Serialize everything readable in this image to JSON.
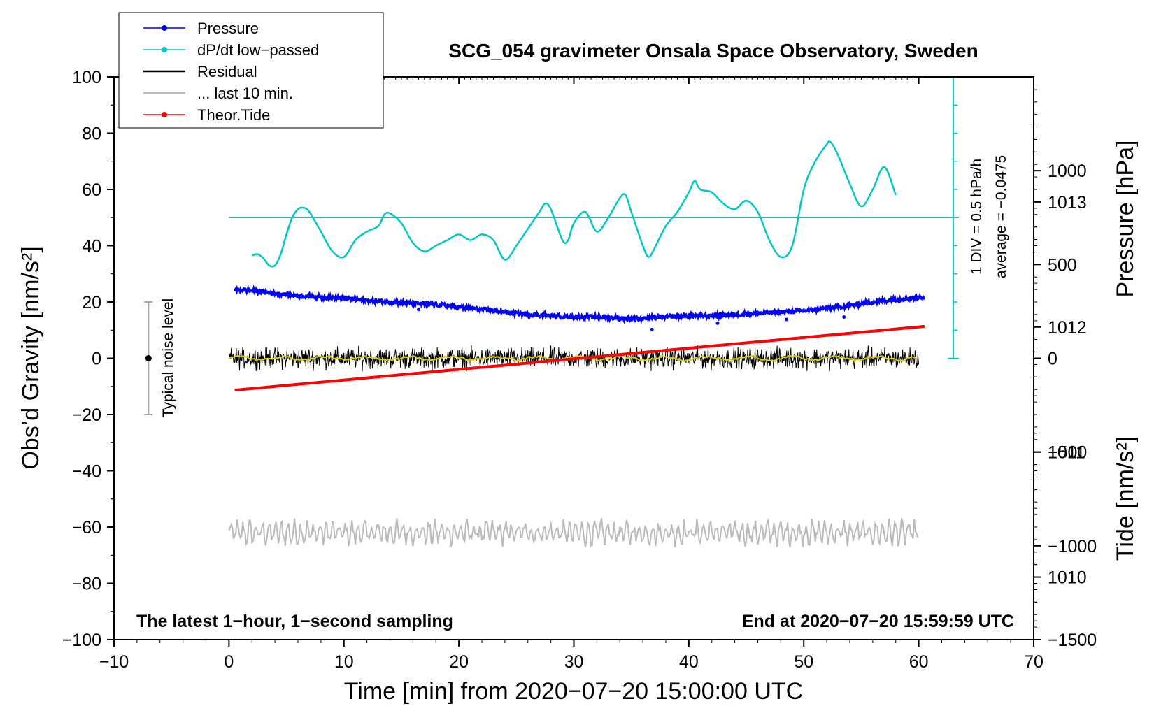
{
  "chart_data": {
    "type": "line",
    "title": "SCG_054 gravimeter Onsala Space Observatory, Sweden",
    "xlabel": "Time [min] from 2020−07−20 15:00:00 UTC",
    "ylabel_left": "Obs’d Gravity [nm/s²]",
    "ylabel_right_pressure": "Pressure [hPa]",
    "ylabel_right_tide": "Tide [nm/s²]",
    "xlim": [
      -10,
      70
    ],
    "ylim_left": [
      -100,
      100
    ],
    "ylim_pressure": [
      1009.5,
      1014
    ],
    "ylim_tide": [
      -1500,
      1500
    ],
    "x_ticks": [
      {
        "v": -10,
        "label": "−10"
      },
      {
        "v": 0,
        "label": "0"
      },
      {
        "v": 10,
        "label": "10"
      },
      {
        "v": 20,
        "label": "20"
      },
      {
        "v": 30,
        "label": "30"
      },
      {
        "v": 40,
        "label": "40"
      },
      {
        "v": 50,
        "label": "50"
      },
      {
        "v": 60,
        "label": "60"
      },
      {
        "v": 70,
        "label": "70"
      }
    ],
    "y_left_ticks": [
      {
        "v": 100,
        "label": "100"
      },
      {
        "v": 80,
        "label": "80"
      },
      {
        "v": 60,
        "label": "60"
      },
      {
        "v": 40,
        "label": "40"
      },
      {
        "v": 20,
        "label": "20"
      },
      {
        "v": 0,
        "label": "0"
      },
      {
        "v": -20,
        "label": "−20"
      },
      {
        "v": -40,
        "label": "−40"
      },
      {
        "v": -60,
        "label": "−60"
      },
      {
        "v": -80,
        "label": "−80"
      },
      {
        "v": -100,
        "label": "−100"
      }
    ],
    "y_pressure_ticks": [
      {
        "v": 1013,
        "label": "1013"
      },
      {
        "v": 1012,
        "label": "1012"
      },
      {
        "v": 1011,
        "label": "1011"
      },
      {
        "v": 1010,
        "label": "1010"
      }
    ],
    "y_tide_ticks": [
      {
        "v": 1000,
        "label": "1000"
      },
      {
        "v": 500,
        "label": "500"
      },
      {
        "v": 0,
        "label": "0"
      },
      {
        "v": -500,
        "label": "−500"
      },
      {
        "v": -1000,
        "label": "−1000"
      },
      {
        "v": -1500,
        "label": "−1500"
      }
    ],
    "legend": [
      {
        "label": "Pressure",
        "color": "#0000ff",
        "marker": true
      },
      {
        "label": "dP/dt low−passed",
        "color": "#00c8c8",
        "marker": true
      },
      {
        "label": "Residual",
        "color": "#000000",
        "marker": false
      },
      {
        "label": "... last 10 min.",
        "color": "#bbbbbb",
        "marker": false
      },
      {
        "label": "Theor.Tide",
        "color": "#ff0000",
        "marker": true
      }
    ],
    "series": [
      {
        "name": "Pressure",
        "color": "#0000ff",
        "axis": "pressure",
        "x": [
          0.5,
          2,
          4,
          6,
          8,
          10,
          12,
          14,
          16,
          18,
          20,
          22,
          24,
          26,
          28,
          30,
          32,
          34,
          36,
          38,
          40,
          42,
          44,
          46,
          48,
          50,
          52,
          54,
          56,
          58,
          60.5
        ],
        "values": [
          1012.3,
          1012.29,
          1012.27,
          1012.25,
          1012.24,
          1012.23,
          1012.21,
          1012.2,
          1012.19,
          1012.18,
          1012.16,
          1012.14,
          1012.12,
          1012.1,
          1012.09,
          1012.08,
          1012.08,
          1012.07,
          1012.07,
          1012.08,
          1012.09,
          1012.09,
          1012.1,
          1012.11,
          1012.12,
          1012.13,
          1012.15,
          1012.17,
          1012.2,
          1012.22,
          1012.24
        ]
      },
      {
        "name": "dP/dt low−passed",
        "color": "#00c8c8",
        "axis": "left",
        "x": [
          2,
          2.5,
          3,
          3.5,
          4,
          4.5,
          5,
          5.5,
          6,
          6.5,
          7,
          8,
          9,
          10,
          11,
          12,
          13,
          13.5,
          14,
          15,
          16,
          17,
          18,
          19,
          20,
          21,
          22,
          23,
          24,
          25,
          26,
          27,
          27.5,
          28,
          29,
          29.5,
          30,
          31,
          32,
          33,
          34,
          34.5,
          35,
          36,
          36.5,
          37,
          38,
          39,
          40,
          40.5,
          41,
          42,
          43,
          44,
          45,
          46,
          47,
          48,
          49,
          50,
          51,
          52,
          52.3,
          53,
          54,
          55,
          56,
          57,
          58
        ],
        "values": [
          36.5,
          37,
          35.5,
          33,
          33,
          37,
          44,
          50,
          53,
          53.5,
          52,
          45,
          38,
          36,
          42,
          45,
          47,
          51,
          51.5,
          48,
          41,
          38,
          40,
          42,
          44,
          42,
          44,
          42,
          35,
          40,
          46,
          52,
          55,
          53,
          42,
          42,
          48,
          52,
          45,
          50,
          57,
          58,
          52,
          40,
          36,
          39,
          47,
          52,
          59,
          63,
          60,
          59,
          55,
          53,
          56,
          52,
          42,
          36,
          40,
          60,
          70,
          76,
          77,
          72,
          62,
          54,
          60,
          68,
          58
        ]
      },
      {
        "name": "Residual",
        "color": "#000000",
        "axis": "left",
        "x_start": 0,
        "x_end": 60,
        "mean": 0,
        "amplitude": 4
      },
      {
        "name": "Residual smoothed",
        "color": "#d8d000",
        "axis": "left",
        "x_start": 0,
        "x_end": 60,
        "mean": 0,
        "amplitude": 1
      },
      {
        "name": "... last 10 min.",
        "color": "#bbbbbb",
        "axis": "left",
        "x_start": 0,
        "x_end": 60,
        "mean": -62,
        "amplitude": 5
      },
      {
        "name": "Theor.Tide",
        "color": "#ff0000",
        "axis": "tide",
        "x": [
          0.5,
          60.5
        ],
        "values": [
          -170,
          170
        ]
      }
    ],
    "reference_lines": [
      {
        "name": "dP/dt zero line",
        "axis": "left",
        "value": 50,
        "color": "#00c8c8"
      }
    ],
    "dpdt_scale_note": "1 DIV = 0.5 hPa/h",
    "dpdt_average_note": "average = −0.0475",
    "noise_bar": {
      "x": -7,
      "low": -20,
      "high": 20,
      "label": "Typical noise level"
    },
    "bottom_left_note": "The latest 1−hour, 1−second sampling",
    "bottom_right_note": "End at 2020−07−20 15:59:59 UTC"
  }
}
